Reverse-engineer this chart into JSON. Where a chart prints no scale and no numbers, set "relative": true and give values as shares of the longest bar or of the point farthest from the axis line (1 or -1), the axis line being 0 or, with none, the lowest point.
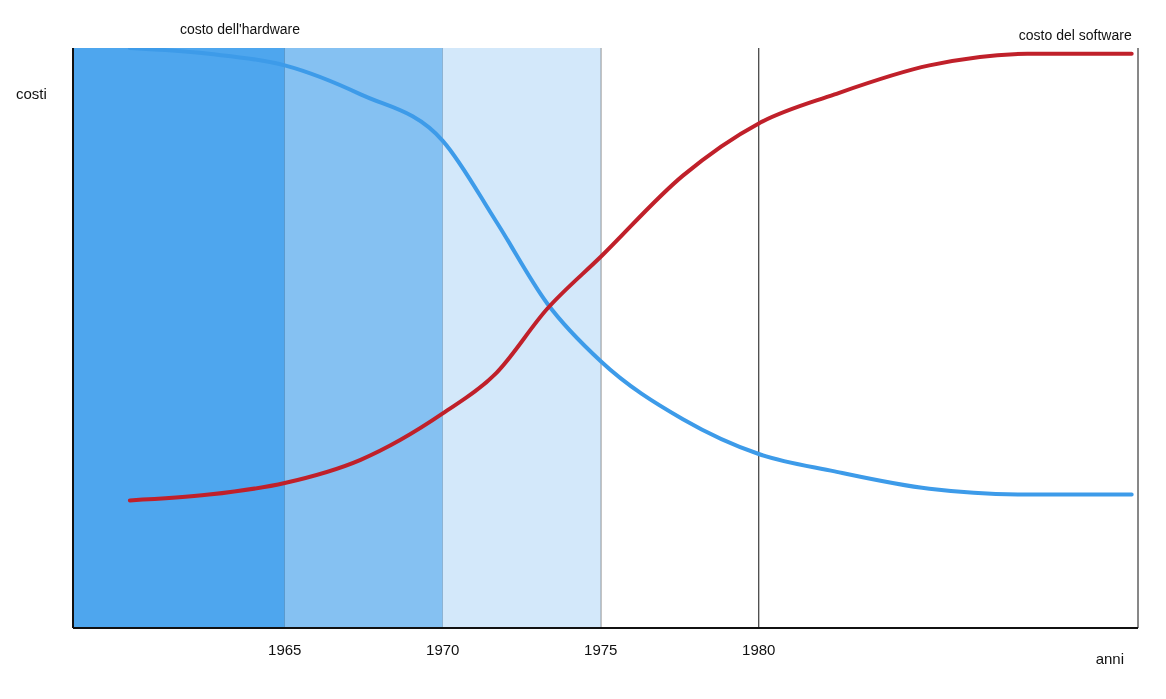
{
  "chart_data": {
    "type": "line",
    "relative": true,
    "xlabel": "anni",
    "ylabel": "costi",
    "xlim": [
      1958.3,
      1992
    ],
    "xticks": [
      1965,
      1970,
      1975,
      1980
    ],
    "grid": "x",
    "marker": "none",
    "line_style": "solid",
    "bands": [
      {
        "axis": "x",
        "from": 1958.3,
        "to": 1965,
        "color": "#4ea6ee"
      },
      {
        "axis": "x",
        "from": 1965,
        "to": 1970,
        "color": "#85c1f2"
      },
      {
        "axis": "x",
        "from": 1970,
        "to": 1975,
        "color": "#d3e8fa"
      }
    ],
    "series": [
      {
        "name": "costo dell'hardware",
        "color": "#3d9be9",
        "x": [
          1960.1,
          1962.6,
          1965,
          1967.4,
          1970,
          1971.7,
          1973.3,
          1975,
          1977.6,
          1980,
          1982.4,
          1985.4,
          1988.5,
          1991.8
        ],
        "values": [
          1,
          0.99,
          0.97,
          0.92,
          0.84,
          0.7,
          0.56,
          0.46,
          0.36,
          0.3,
          0.27,
          0.24,
          0.23,
          0.23
        ]
      },
      {
        "name": "costo del software",
        "color": "#c0202a",
        "x": [
          1960.1,
          1962.6,
          1965,
          1967.4,
          1970,
          1971.7,
          1973.3,
          1975,
          1977.6,
          1980,
          1982.4,
          1985.4,
          1988.5,
          1991.8
        ],
        "values": [
          0.22,
          0.23,
          0.25,
          0.29,
          0.37,
          0.44,
          0.55,
          0.64,
          0.78,
          0.87,
          0.92,
          0.97,
          0.99,
          0.99
        ]
      }
    ]
  }
}
